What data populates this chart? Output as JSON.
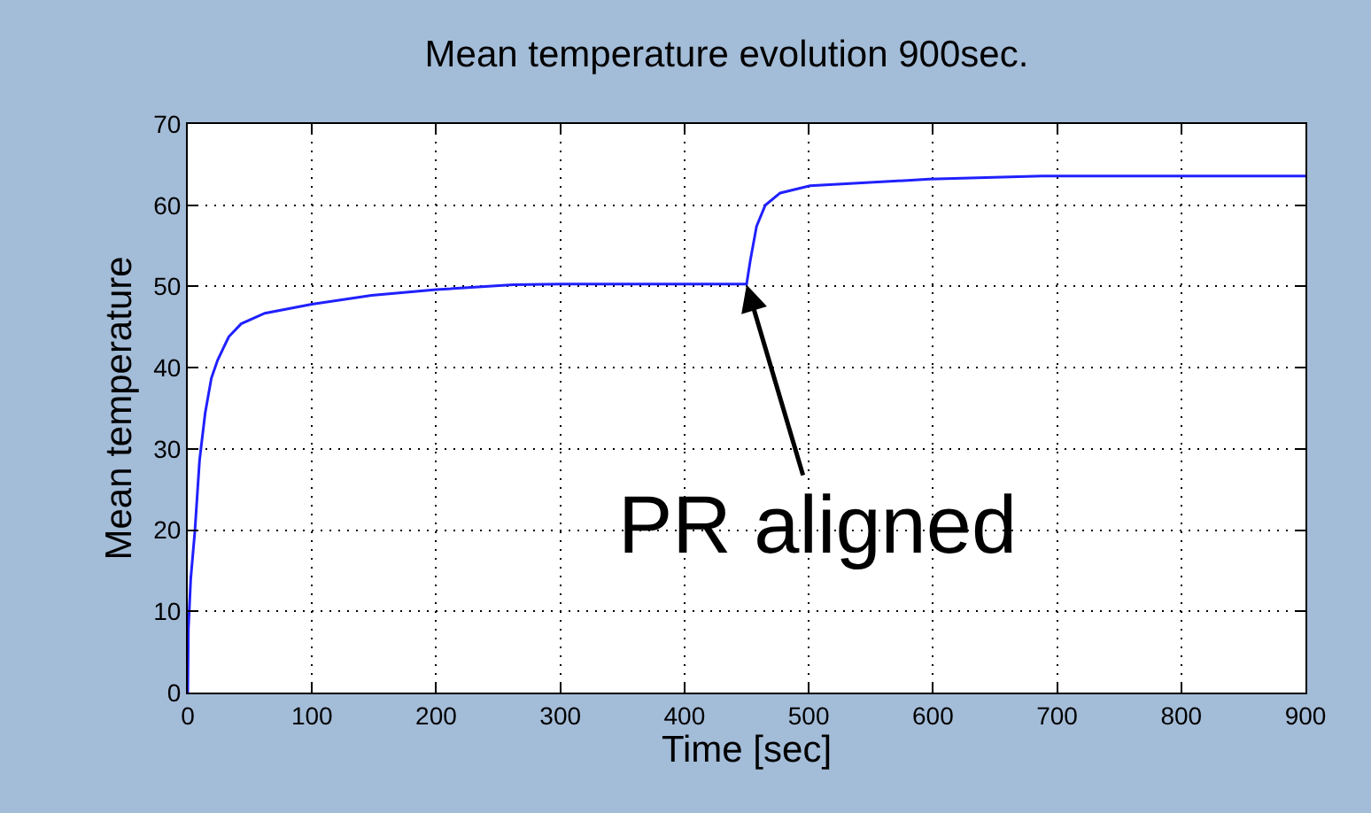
{
  "chart_data": {
    "type": "line",
    "title": "Mean temperature evolution 900sec.",
    "xlabel": "Time [sec]",
    "ylabel": "Mean temperature",
    "x": [
      0,
      0.5,
      2.4,
      5.7,
      9.5,
      14,
      19,
      24,
      33,
      43,
      62,
      100,
      148,
      200,
      262,
      300,
      348,
      390,
      450,
      453,
      458,
      465,
      477,
      501,
      549,
      597,
      688,
      900
    ],
    "series": [
      {
        "color": "#2020ff",
        "values": [
          0,
          7.8,
          14,
          19.8,
          28.6,
          34.4,
          38.7,
          40.9,
          43.8,
          45.4,
          46.7,
          47.8,
          48.9,
          49.6,
          50.2,
          50.3,
          50.3,
          50.3,
          50.3,
          53.2,
          57.4,
          60,
          61.5,
          62.4,
          62.8,
          63.2,
          63.6,
          63.6
        ]
      }
    ],
    "annotations": [
      {
        "text": "PR aligned",
        "x": 450,
        "y": 50.2
      }
    ],
    "xlim": [
      0,
      900
    ],
    "xticks": [
      0,
      100,
      200,
      300,
      400,
      500,
      600,
      700,
      800,
      900
    ],
    "ylim": [
      0,
      70
    ],
    "yticks": [
      0,
      10,
      20,
      30,
      40,
      50,
      60,
      70
    ],
    "grid": true,
    "legend": false,
    "line_style": "solid",
    "marker": "none"
  }
}
